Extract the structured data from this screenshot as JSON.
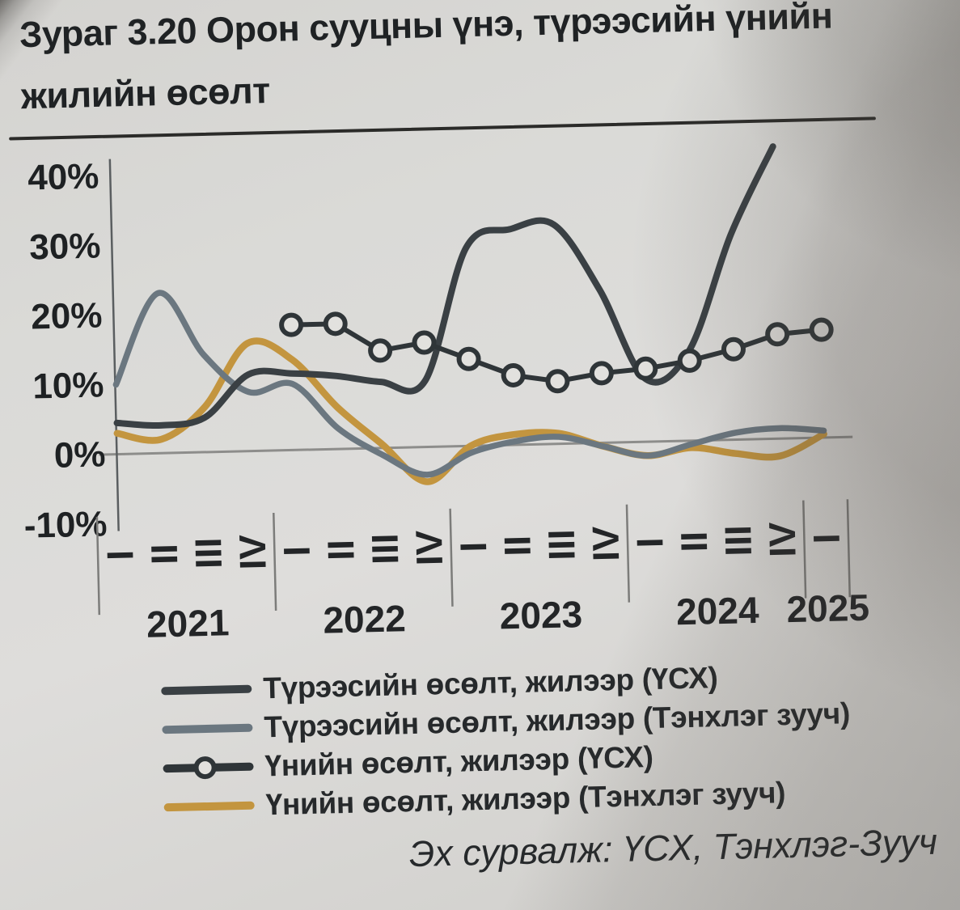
{
  "figure": {
    "title": "Зураг 3.20 Орон сууцны үнэ, түрээсийн үнийн жилийн өсөлт",
    "source": "Эх сурвалж: ҮСХ, Тэнхлэг-Зууч"
  },
  "chart_data": {
    "type": "line",
    "title": "Зураг 3.20 Орон сууцны үнэ, түрээсийн үнийн жилийн өсөлт",
    "source": "Эх сурвалж: ҮСХ, Тэнхлэг-Зууч",
    "unit": "%",
    "grid": "zero-axis line only",
    "legend_position": "bottom-left",
    "y_axis": {
      "tick_values": [
        40,
        30,
        20,
        10,
        0,
        -10
      ],
      "tick_labels": [
        "40%",
        "30%",
        "20%",
        "10%",
        "0%",
        "-10%"
      ],
      "ylim": [
        -14,
        45
      ]
    },
    "x_axis": {
      "years": [
        {
          "label": "2021",
          "quarters": [
            "I",
            "II",
            "III",
            "IV"
          ]
        },
        {
          "label": "2022",
          "quarters": [
            "I",
            "II",
            "III",
            "IV"
          ]
        },
        {
          "label": "2023",
          "quarters": [
            "I",
            "II",
            "III",
            "IV"
          ]
        },
        {
          "label": "2024",
          "quarters": [
            "I",
            "II",
            "III",
            "IV"
          ]
        },
        {
          "label": "2025",
          "quarters": [
            "I"
          ]
        }
      ]
    },
    "x_categories": [
      "2021 I",
      "2021 II",
      "2021 III",
      "2021 IV",
      "2022 I",
      "2022 II",
      "2022 III",
      "2022 IV",
      "2023 I",
      "2023 II",
      "2023 III",
      "2023 IV",
      "2024 I",
      "2024 II",
      "2024 III",
      "2024 IV",
      "2025 I"
    ],
    "series": [
      {
        "name": "Түрээсийн өсөлт, жилээр (ҮСХ)",
        "color": "#3a4044",
        "marker": false,
        "smooth": true,
        "start_index": 0,
        "values": [
          4.5,
          4,
          5,
          11,
          11,
          10.5,
          9.5,
          9.5,
          28.5,
          31,
          31.5,
          22,
          9,
          13,
          29.5,
          42
        ]
      },
      {
        "name": "Түрээсийн өсөлт, жилээр (Тэнхлэг зууч)",
        "color": "#6b7780",
        "marker": false,
        "smooth": true,
        "start_index": 0,
        "values": [
          10,
          23,
          14,
          8.5,
          9.5,
          3,
          -1,
          -4,
          -1,
          0.5,
          1,
          -0.5,
          -2,
          -0.5,
          1,
          1.5,
          1
        ]
      },
      {
        "name": "Үнийн өсөлт, жилээр (ҮСХ)",
        "color": "#2f3538",
        "marker": true,
        "smooth": false,
        "start_index": 4,
        "values": [
          18,
          18,
          14,
          15,
          12.5,
          10,
          9,
          10,
          10.5,
          11.5,
          13,
          15,
          15.5
        ]
      },
      {
        "name": "Үнийн өсөлт, жилээр (Тэнхлэг зууч)",
        "color": "#c3953f",
        "marker": false,
        "smooth": true,
        "start_index": 0,
        "values": [
          3,
          2,
          6.5,
          15.5,
          13,
          6,
          0.5,
          -5,
          0,
          1.5,
          1.5,
          -0.5,
          -2,
          -1,
          -2,
          -2.5,
          0.5
        ]
      }
    ]
  }
}
